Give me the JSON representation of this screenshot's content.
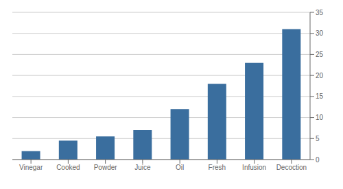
{
  "chart_data": {
    "type": "bar",
    "categories": [
      "Vinegar",
      "Cooked",
      "Powder",
      "Juice",
      "Oil",
      "Fresh",
      "Infusion",
      "Decoction"
    ],
    "values": [
      2,
      4.5,
      5.5,
      7,
      12,
      18,
      23,
      31
    ],
    "color": "#3a6e9e",
    "ylim": [
      0,
      35
    ],
    "yticks": [
      0,
      5,
      10,
      15,
      20,
      25,
      30,
      35
    ],
    "grid": true
  }
}
